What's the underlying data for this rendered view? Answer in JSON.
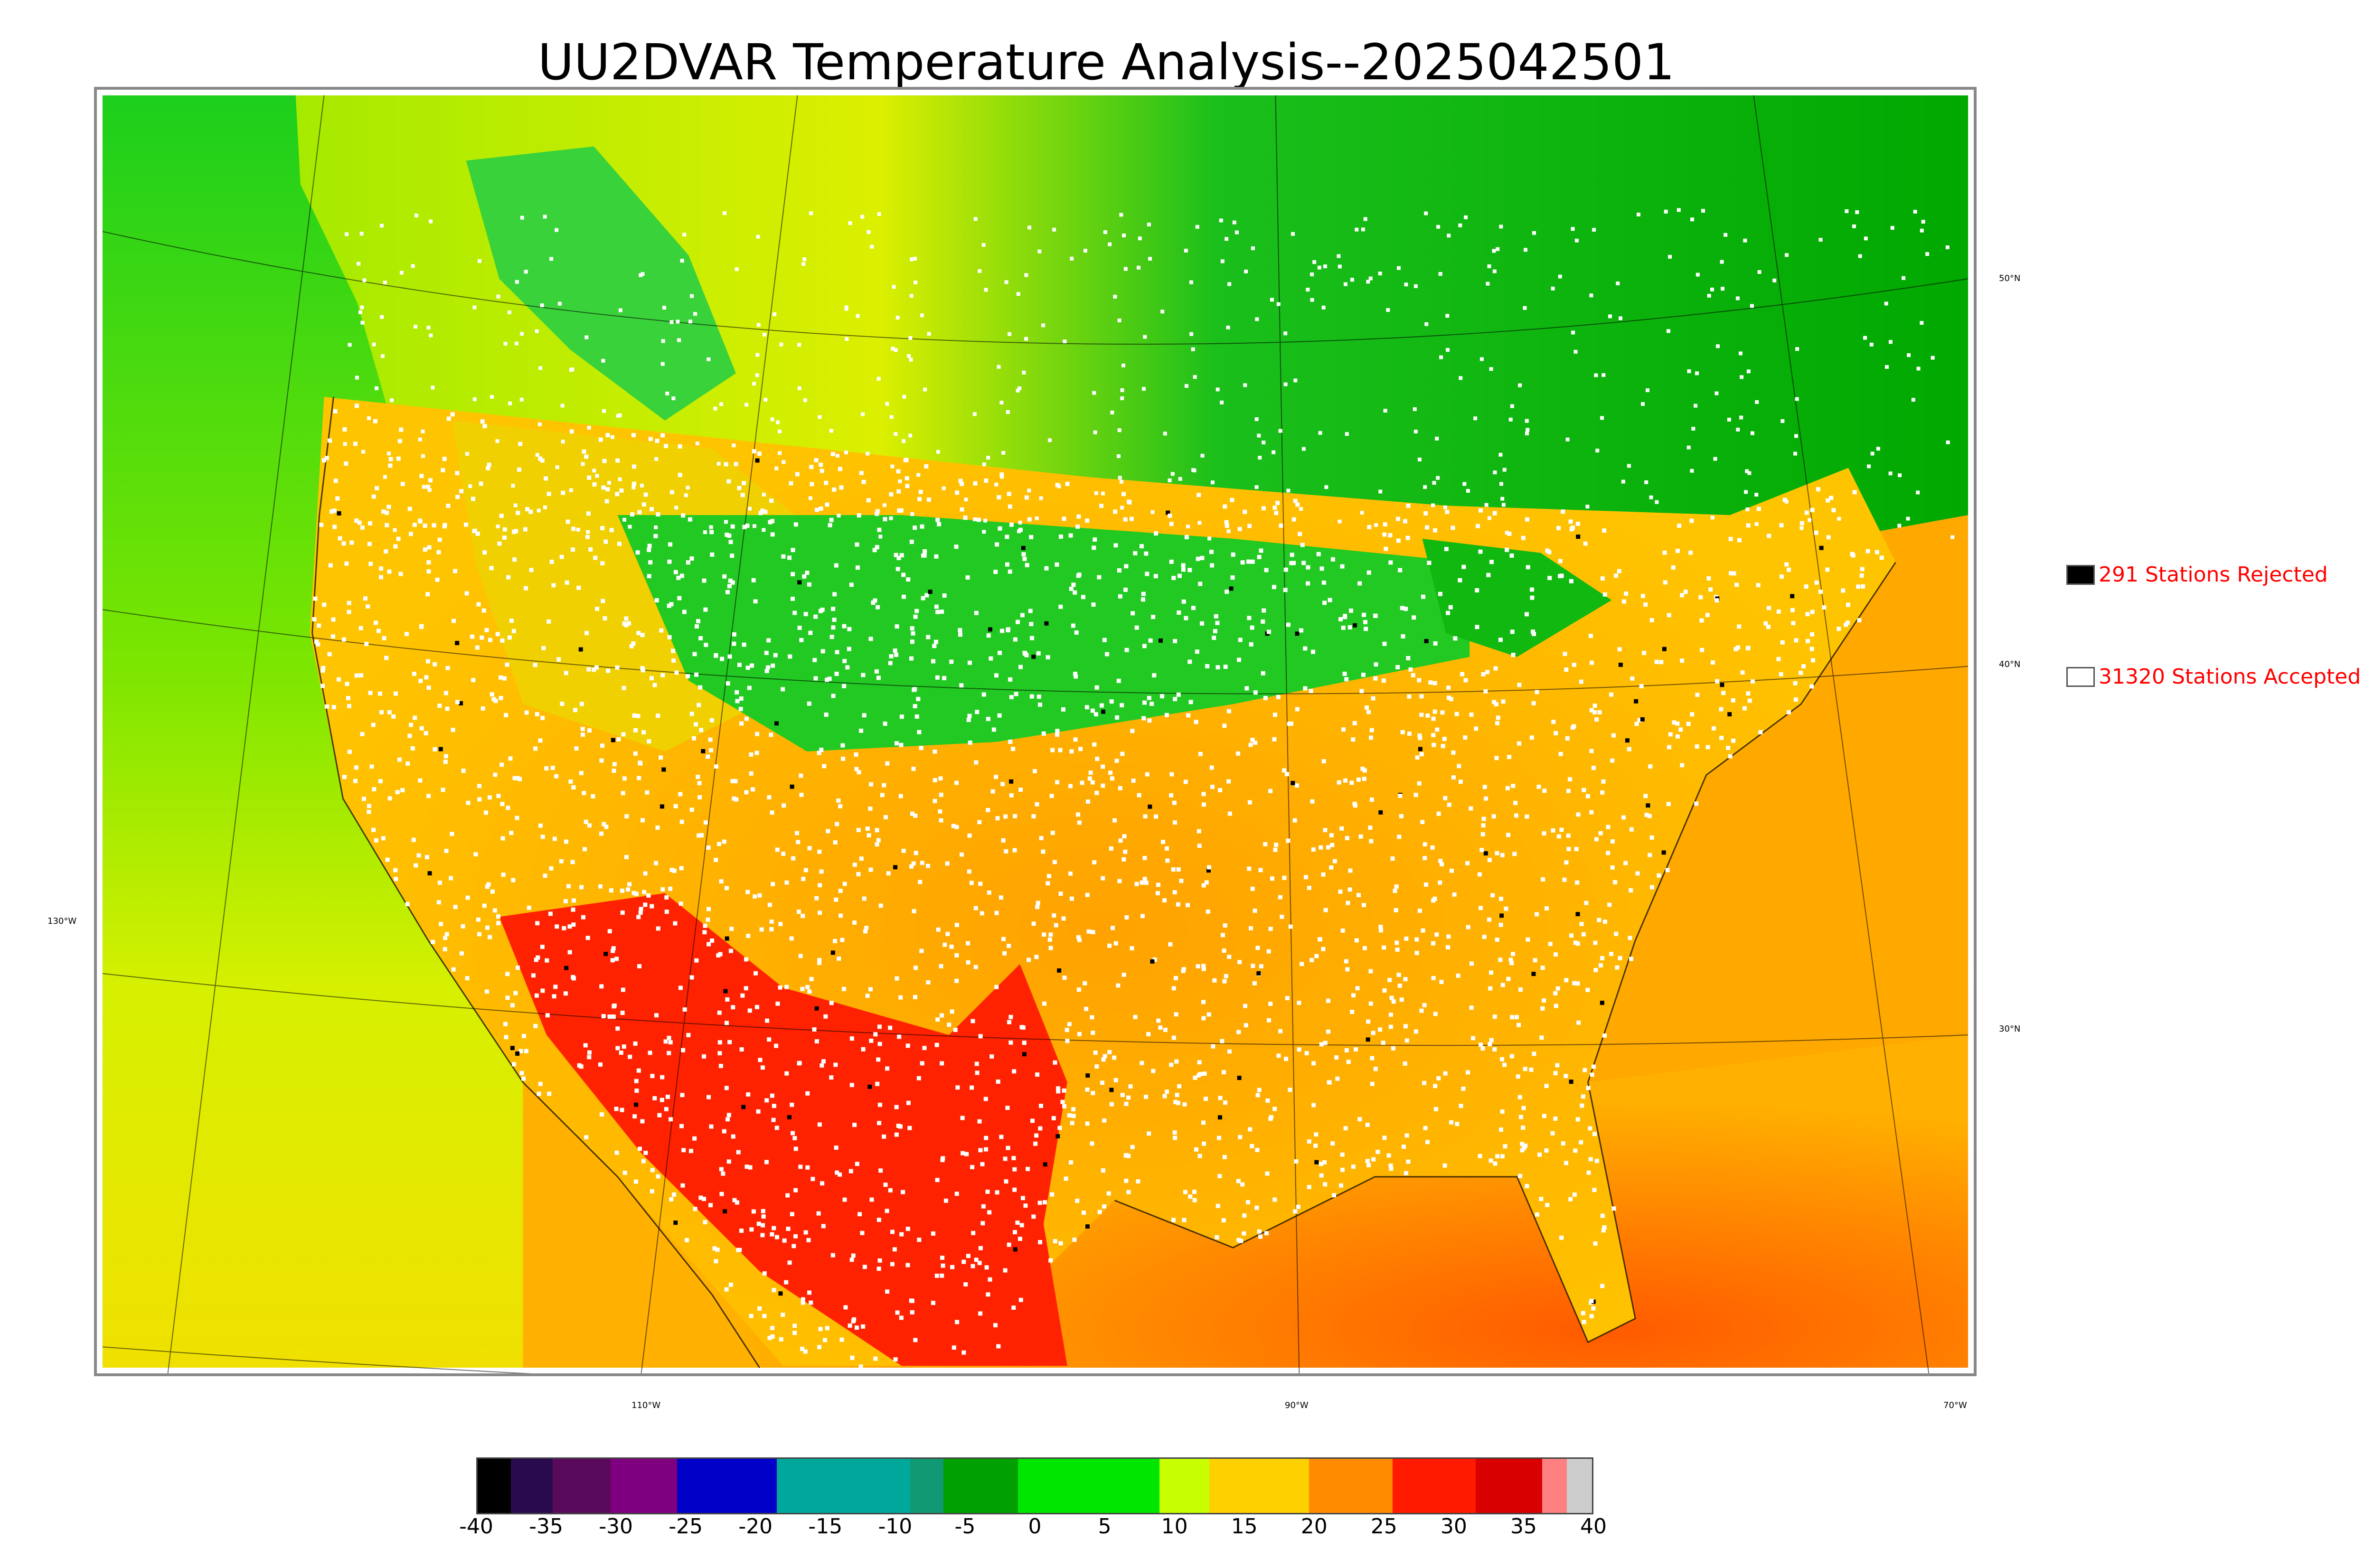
{
  "title": "UU2DVAR Temperature Analysis--2025042501",
  "legend": {
    "rejected": {
      "label": "291 Stations Rejected",
      "color": "#000000"
    },
    "accepted": {
      "label": "31320 Stations Accepted",
      "color": "#ffffff"
    }
  },
  "axes": {
    "lat_labels": [
      "50°N",
      "40°N",
      "30°N"
    ],
    "lon_labels": [
      "130°W",
      "110°W",
      "90°W",
      "70°W"
    ]
  },
  "colorbar": {
    "ticks": [
      "-40",
      "-35",
      "-30",
      "-25",
      "-20",
      "-15",
      "-10",
      "-5",
      "0",
      "5",
      "10",
      "15",
      "20",
      "25",
      "30",
      "35",
      "40"
    ],
    "range": [
      -40,
      40
    ],
    "colors": [
      "#000000",
      "#2a0a4e",
      "#5a0a5a",
      "#7f007f",
      "#0000c8",
      "#00a89b",
      "#109973",
      "#00a000",
      "#00e600",
      "#c8ff00",
      "#ffd000",
      "#ff8c00",
      "#ff1a00",
      "#d80000",
      "#ff8080",
      "#cccccc"
    ]
  },
  "map": {
    "colors": {
      "ocean_pacific": "#c8f000",
      "ocean_atlantic": "#ff9a00",
      "land_cool": "#2ad02a",
      "land_warm": "#ffb000",
      "land_hot": "#ff2000",
      "canada": "#15b515",
      "station_accepted": "#ffffff",
      "station_rejected": "#000000"
    }
  }
}
